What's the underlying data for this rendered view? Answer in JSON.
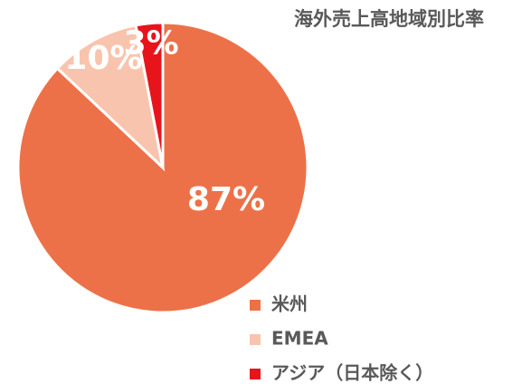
{
  "chart_data": {
    "type": "pie",
    "title": "海外売上高地域別比率",
    "categories": [
      "米州",
      "EMEA",
      "アジア（日本除く）"
    ],
    "values": [
      87,
      10,
      3
    ],
    "value_labels": [
      "87%",
      "10%",
      "3%"
    ],
    "colors": [
      "#ED7148",
      "#F8C4AE",
      "#E8141B"
    ],
    "legend": "bottom-right"
  }
}
